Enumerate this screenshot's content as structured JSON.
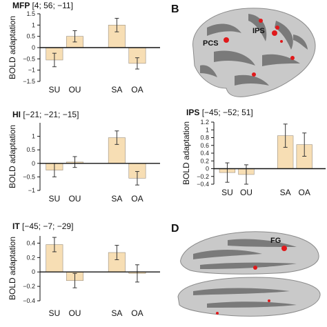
{
  "chart_data": [
    {
      "type": "bar",
      "title_region": "MFP",
      "title_coords": "[4; 56; −11]",
      "ylabel": "BOLD adaptation",
      "categories": [
        "SU",
        "OU",
        "SA",
        "OA"
      ],
      "values": [
        -0.55,
        0.5,
        1.0,
        -0.7
      ],
      "errors": [
        0.3,
        0.25,
        0.3,
        0.25
      ],
      "ylim": [
        -1.5,
        1.5
      ],
      "yticks": [
        "1.5",
        "1",
        "0.5",
        "0",
        "−0.5",
        "−1",
        "−1.5"
      ],
      "bar_color": "#f7deb4"
    },
    {
      "type": "bar",
      "title_region": "HI",
      "title_coords": "[−21; −21; −15]",
      "ylabel": "BOLD adaptation",
      "categories": [
        "SU",
        "OU",
        "SA",
        "OA"
      ],
      "values": [
        -0.25,
        0.05,
        0.95,
        -0.55
      ],
      "errors": [
        0.25,
        0.2,
        0.25,
        0.25
      ],
      "ylim": [
        -1,
        1.5
      ],
      "yticks": [
        "1",
        "0.5",
        "0",
        "−0.5",
        "−1"
      ],
      "bar_color": "#f7deb4"
    },
    {
      "type": "bar",
      "title_region": "IT",
      "title_coords": "[−45; −7; −29]",
      "ylabel": "BOLD adaptation",
      "categories": [
        "SU",
        "OU",
        "SA",
        "OA"
      ],
      "values": [
        0.38,
        -0.12,
        0.27,
        -0.02
      ],
      "errors": [
        0.1,
        0.1,
        0.1,
        0.12
      ],
      "ylim": [
        -0.4,
        0.5
      ],
      "yticks": [
        "0.4",
        "0.2",
        "0",
        "−0.2",
        "−0.4"
      ],
      "bar_color": "#f7deb4"
    },
    {
      "type": "bar",
      "title_region": "IPS",
      "title_coords": "[−45; −52; 51]",
      "ylabel": "BOLD adaptation",
      "categories": [
        "SU",
        "OU",
        "SA",
        "OA"
      ],
      "values": [
        -0.1,
        -0.15,
        0.85,
        0.62
      ],
      "errors": [
        0.25,
        0.25,
        0.3,
        0.3
      ],
      "ylim": [
        -0.4,
        1.2
      ],
      "yticks": [
        "1.2",
        "1",
        "0.8",
        "0.6",
        "0.4",
        "0.2",
        "0",
        "−0.2",
        "−0.4"
      ],
      "bar_color": "#f7deb4"
    }
  ],
  "panel_letters": {
    "b": "B",
    "d": "D"
  },
  "brain_labels": {
    "pcs": "PCS",
    "ips": "IPS",
    "fg": "FG"
  },
  "colors": {
    "activation": "#e0191b",
    "cortex_light": "#c9c9c9",
    "cortex_dark": "#7a7a7a"
  }
}
